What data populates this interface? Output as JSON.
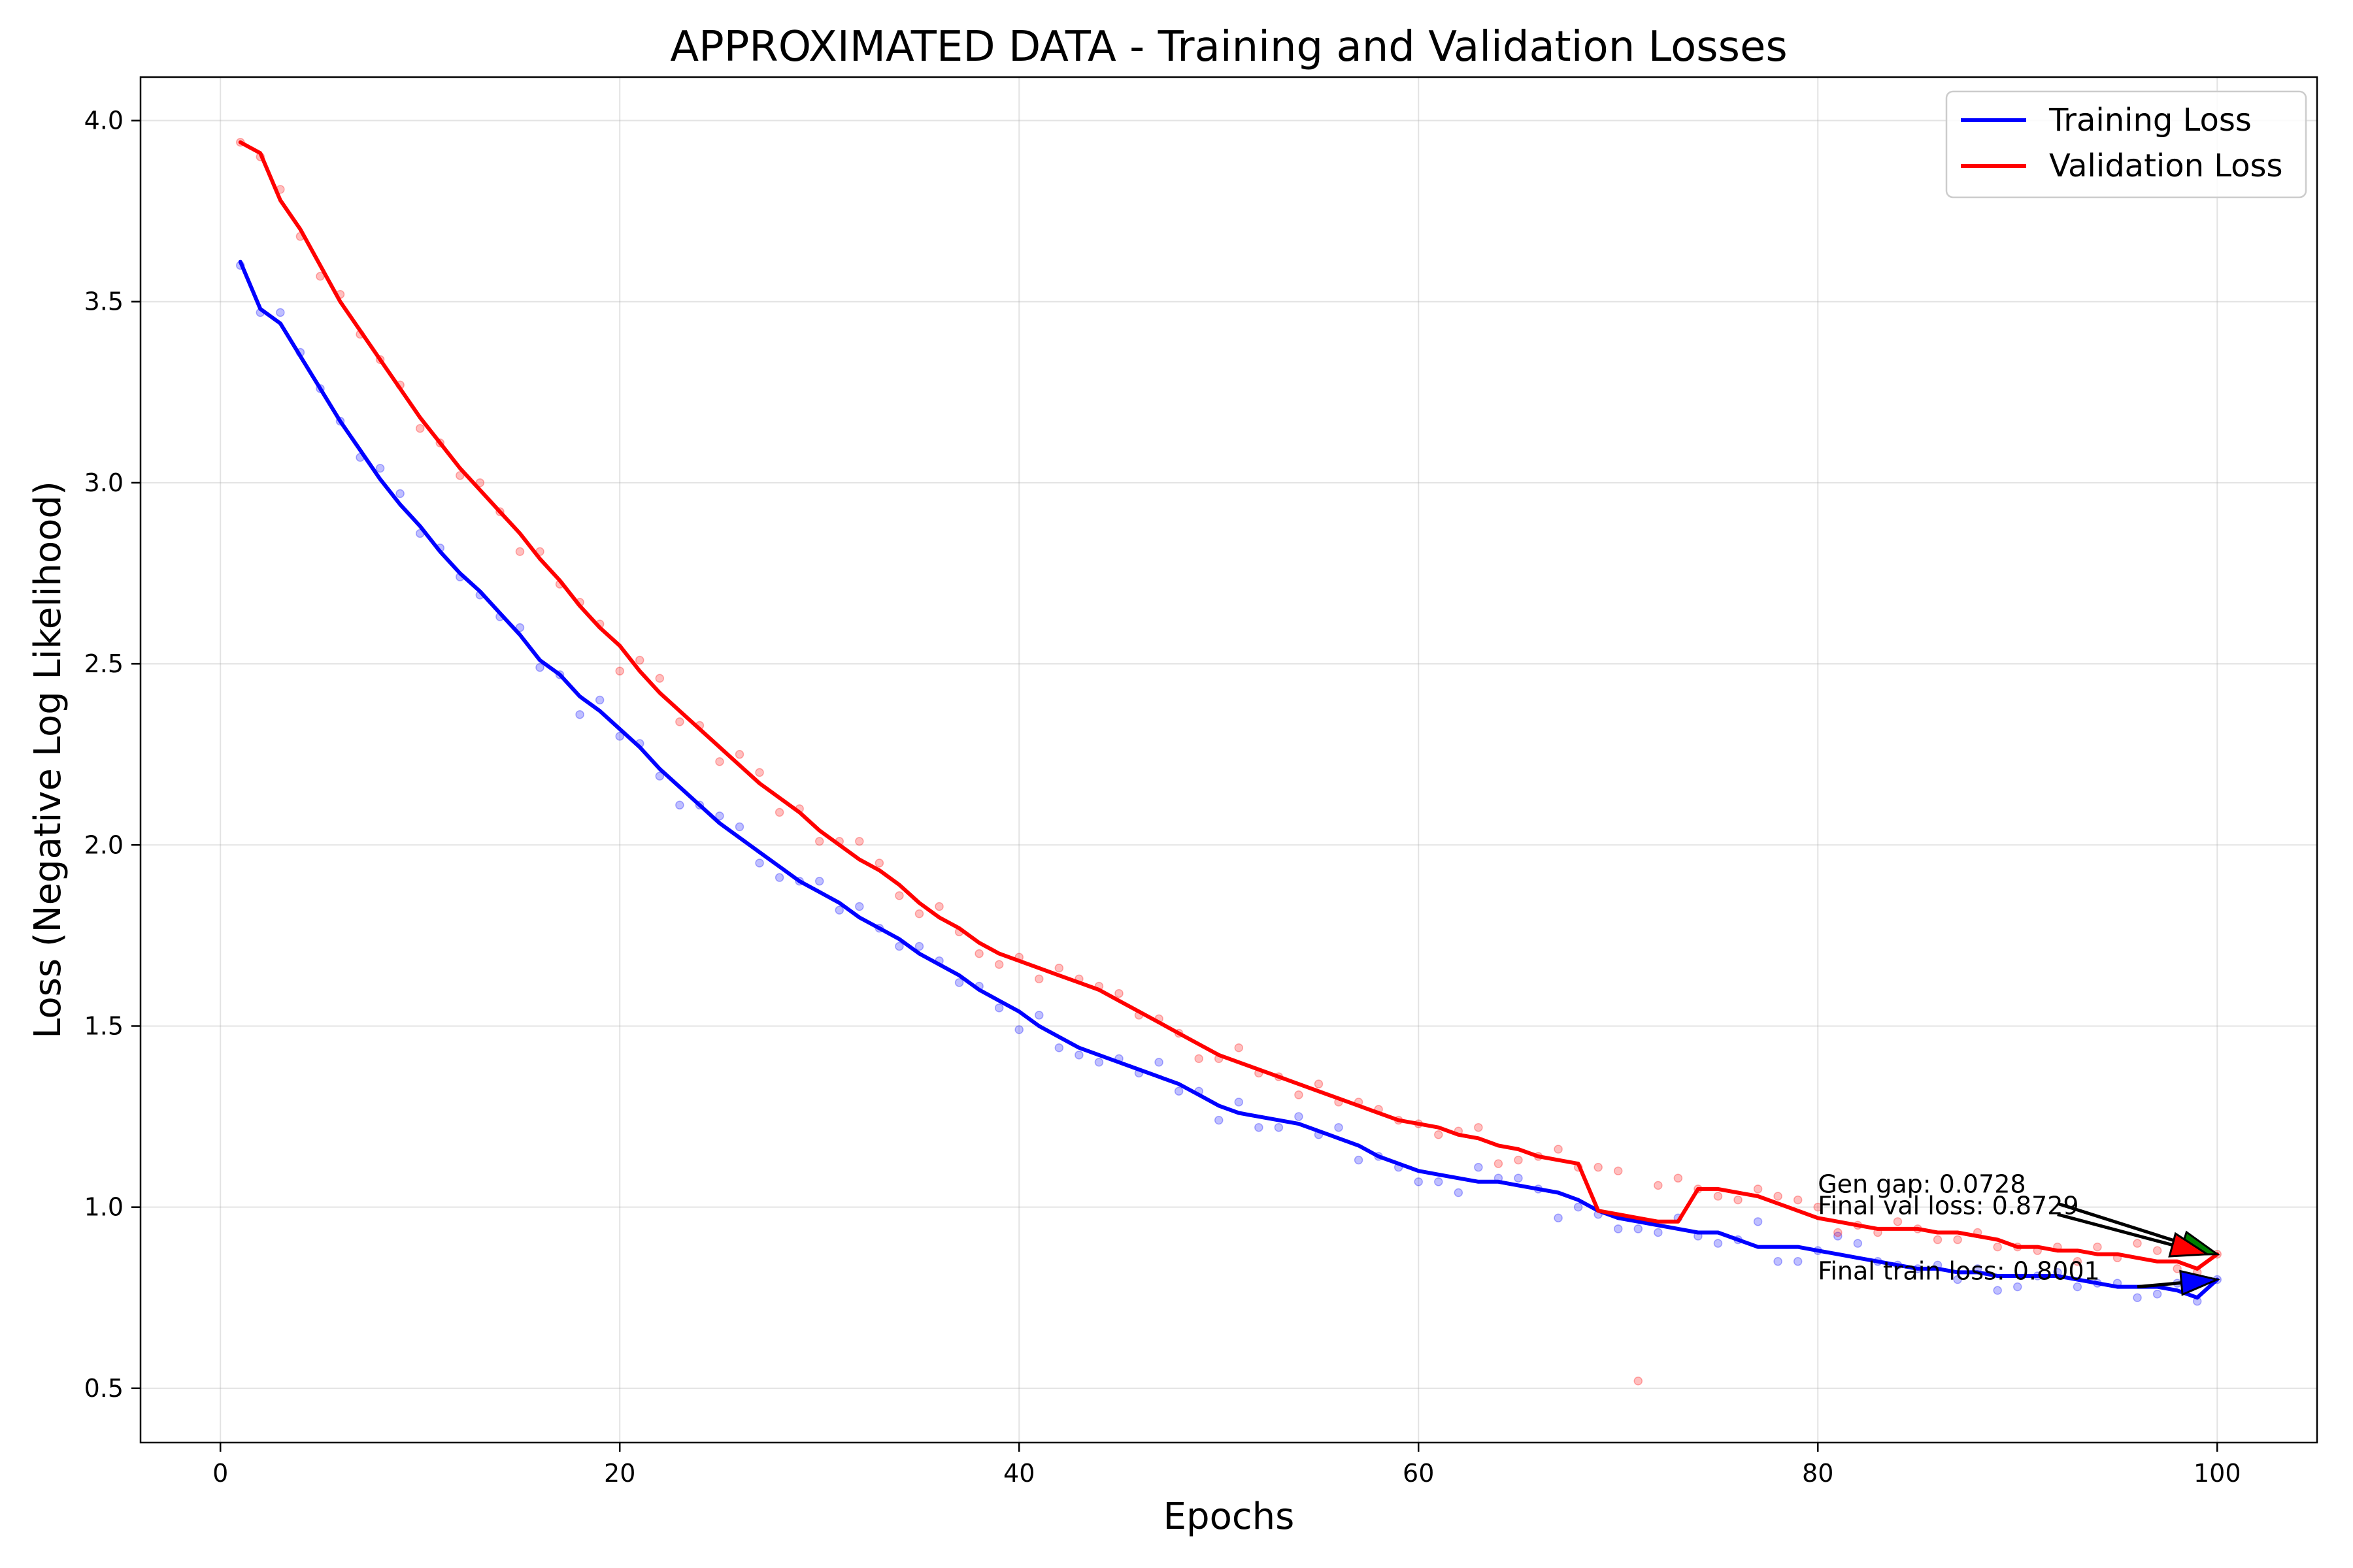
{
  "chart_data": {
    "type": "line",
    "title": "APPROXIMATED DATA - Training and Validation Losses",
    "xlabel": "Epochs",
    "ylabel": "Loss (Negative Log Likelihood)",
    "xlim": [
      -4,
      105
    ],
    "ylim": [
      0.35,
      4.12
    ],
    "xticks": [
      0,
      20,
      40,
      60,
      80,
      100
    ],
    "yticks": [
      0.5,
      1.0,
      1.5,
      2.0,
      2.5,
      3.0,
      3.5,
      4.0
    ],
    "xtick_labels": [
      "0",
      "20",
      "40",
      "60",
      "80",
      "100"
    ],
    "ytick_labels": [
      "0.5",
      "1.0",
      "1.5",
      "2.0",
      "2.5",
      "3.0",
      "3.5",
      "4.0"
    ],
    "grid": true,
    "legend_position": "top-right",
    "x": [
      1,
      2,
      3,
      4,
      5,
      6,
      7,
      8,
      9,
      10,
      11,
      12,
      13,
      14,
      15,
      16,
      17,
      18,
      19,
      20,
      21,
      22,
      23,
      24,
      25,
      26,
      27,
      28,
      29,
      30,
      31,
      32,
      33,
      34,
      35,
      36,
      37,
      38,
      39,
      40,
      41,
      42,
      43,
      44,
      45,
      46,
      47,
      48,
      49,
      50,
      51,
      52,
      53,
      54,
      55,
      56,
      57,
      58,
      59,
      60,
      61,
      62,
      63,
      64,
      65,
      66,
      67,
      68,
      69,
      70,
      71,
      72,
      73,
      74,
      75,
      76,
      77,
      78,
      79,
      80,
      81,
      82,
      83,
      84,
      85,
      86,
      87,
      88,
      89,
      90,
      91,
      92,
      93,
      94,
      95,
      96,
      97,
      98,
      99,
      100
    ],
    "series": [
      {
        "name": "Training Loss",
        "color": "#0000ff",
        "values": [
          3.61,
          3.48,
          3.44,
          3.35,
          3.26,
          3.17,
          3.09,
          3.01,
          2.94,
          2.88,
          2.81,
          2.75,
          2.7,
          2.64,
          2.58,
          2.51,
          2.47,
          2.41,
          2.37,
          2.32,
          2.27,
          2.21,
          2.16,
          2.11,
          2.06,
          2.02,
          1.98,
          1.94,
          1.9,
          1.87,
          1.84,
          1.8,
          1.77,
          1.74,
          1.7,
          1.67,
          1.64,
          1.6,
          1.57,
          1.54,
          1.5,
          1.47,
          1.44,
          1.42,
          1.4,
          1.38,
          1.36,
          1.34,
          1.31,
          1.28,
          1.26,
          1.25,
          1.24,
          1.23,
          1.21,
          1.19,
          1.17,
          1.14,
          1.12,
          1.1,
          1.09,
          1.08,
          1.07,
          1.07,
          1.06,
          1.05,
          1.04,
          1.02,
          0.99,
          0.97,
          0.96,
          0.95,
          0.94,
          0.93,
          0.93,
          0.91,
          0.89,
          0.89,
          0.89,
          0.88,
          0.87,
          0.86,
          0.85,
          0.84,
          0.83,
          0.83,
          0.82,
          0.82,
          0.81,
          0.81,
          0.81,
          0.81,
          0.8,
          0.79,
          0.78,
          0.78,
          0.78,
          0.77,
          0.75,
          0.8
        ]
      },
      {
        "name": "Validation Loss",
        "color": "#ff0000",
        "values": [
          3.94,
          3.91,
          3.78,
          3.7,
          3.6,
          3.5,
          3.42,
          3.34,
          3.26,
          3.18,
          3.11,
          3.04,
          2.98,
          2.92,
          2.86,
          2.79,
          2.73,
          2.66,
          2.6,
          2.55,
          2.48,
          2.42,
          2.37,
          2.32,
          2.27,
          2.22,
          2.17,
          2.13,
          2.09,
          2.04,
          2.0,
          1.96,
          1.93,
          1.89,
          1.84,
          1.8,
          1.77,
          1.73,
          1.7,
          1.68,
          1.66,
          1.64,
          1.62,
          1.6,
          1.57,
          1.54,
          1.51,
          1.48,
          1.45,
          1.42,
          1.4,
          1.38,
          1.36,
          1.34,
          1.32,
          1.3,
          1.28,
          1.26,
          1.24,
          1.23,
          1.22,
          1.2,
          1.19,
          1.17,
          1.16,
          1.14,
          1.13,
          1.12,
          0.99,
          0.98,
          0.97,
          0.96,
          0.96,
          1.05,
          1.05,
          1.04,
          1.03,
          1.01,
          0.99,
          0.97,
          0.96,
          0.95,
          0.94,
          0.94,
          0.94,
          0.93,
          0.93,
          0.92,
          0.91,
          0.89,
          0.89,
          0.88,
          0.88,
          0.87,
          0.87,
          0.86,
          0.85,
          0.85,
          0.83,
          0.87
        ]
      }
    ],
    "scatter_series": [
      {
        "color": "#0000ff",
        "values": [
          3.6,
          3.47,
          3.47,
          3.36,
          3.26,
          3.17,
          3.07,
          3.04,
          2.97,
          2.86,
          2.82,
          2.74,
          2.69,
          2.63,
          2.6,
          2.49,
          2.47,
          2.36,
          2.4,
          2.3,
          2.28,
          2.19,
          2.11,
          2.11,
          2.08,
          2.05,
          1.95,
          1.91,
          1.9,
          1.9,
          1.82,
          1.83,
          1.77,
          1.72,
          1.72,
          1.68,
          1.62,
          1.61,
          1.55,
          1.49,
          1.53,
          1.44,
          1.42,
          1.4,
          1.41,
          1.37,
          1.4,
          1.32,
          1.32,
          1.24,
          1.29,
          1.22,
          1.22,
          1.25,
          1.2,
          1.22,
          1.13,
          1.14,
          1.11,
          1.07,
          1.07,
          1.04,
          1.11,
          1.08,
          1.08,
          1.05,
          0.97,
          1.0,
          0.98,
          0.94,
          0.94,
          0.93,
          0.97,
          0.92,
          0.9,
          0.91,
          0.96,
          0.85,
          0.85,
          0.88,
          0.92,
          0.9,
          0.85,
          0.84,
          0.83,
          0.84,
          0.8,
          0.83,
          0.77,
          0.78,
          0.81,
          0.82,
          0.78,
          0.79,
          0.79,
          0.75,
          0.76,
          0.79,
          0.74,
          0.8
        ]
      },
      {
        "color": "#ff0000",
        "values": [
          3.94,
          3.9,
          3.81,
          3.68,
          3.57,
          3.52,
          3.41,
          3.34,
          3.27,
          3.15,
          3.11,
          3.02,
          3.0,
          2.92,
          2.81,
          2.81,
          2.72,
          2.67,
          2.61,
          2.48,
          2.51,
          2.46,
          2.34,
          2.33,
          2.23,
          2.25,
          2.2,
          2.09,
          2.1,
          2.01,
          2.01,
          2.01,
          1.95,
          1.86,
          1.81,
          1.83,
          1.76,
          1.7,
          1.67,
          1.69,
          1.63,
          1.66,
          1.63,
          1.61,
          1.59,
          1.53,
          1.52,
          1.48,
          1.41,
          1.41,
          1.44,
          1.37,
          1.36,
          1.31,
          1.34,
          1.29,
          1.29,
          1.27,
          1.24,
          1.23,
          1.2,
          1.21,
          1.22,
          1.12,
          1.13,
          1.14,
          1.16,
          1.11,
          1.11,
          1.1,
          0.52,
          1.06,
          1.08,
          1.05,
          1.03,
          1.02,
          1.05,
          1.03,
          1.02,
          1.0,
          0.93,
          0.95,
          0.93,
          0.96,
          0.94,
          0.91,
          0.91,
          0.93,
          0.89,
          0.89,
          0.88,
          0.89,
          0.85,
          0.89,
          0.86,
          0.9,
          0.88,
          0.83,
          0.82,
          0.87
        ]
      }
    ],
    "annotations": [
      {
        "text": "Gen gap: 0.0728",
        "x": 80,
        "y": 1.04,
        "arrow_from": [
          92,
          1.01
        ],
        "arrow_to": [
          100,
          0.87
        ],
        "arrow_color": "#008000"
      },
      {
        "text": "Final val loss: 0.8729",
        "x": 80,
        "y": 0.98,
        "arrow_from": [
          92,
          0.98
        ],
        "arrow_to": [
          99.5,
          0.87
        ],
        "arrow_color": "#ff0000"
      },
      {
        "text": "Final train loss: 0.8001",
        "x": 80,
        "y": 0.8,
        "arrow_from": [
          96,
          0.78
        ],
        "arrow_to": [
          100,
          0.8
        ],
        "arrow_color": "#0000ff"
      }
    ]
  }
}
